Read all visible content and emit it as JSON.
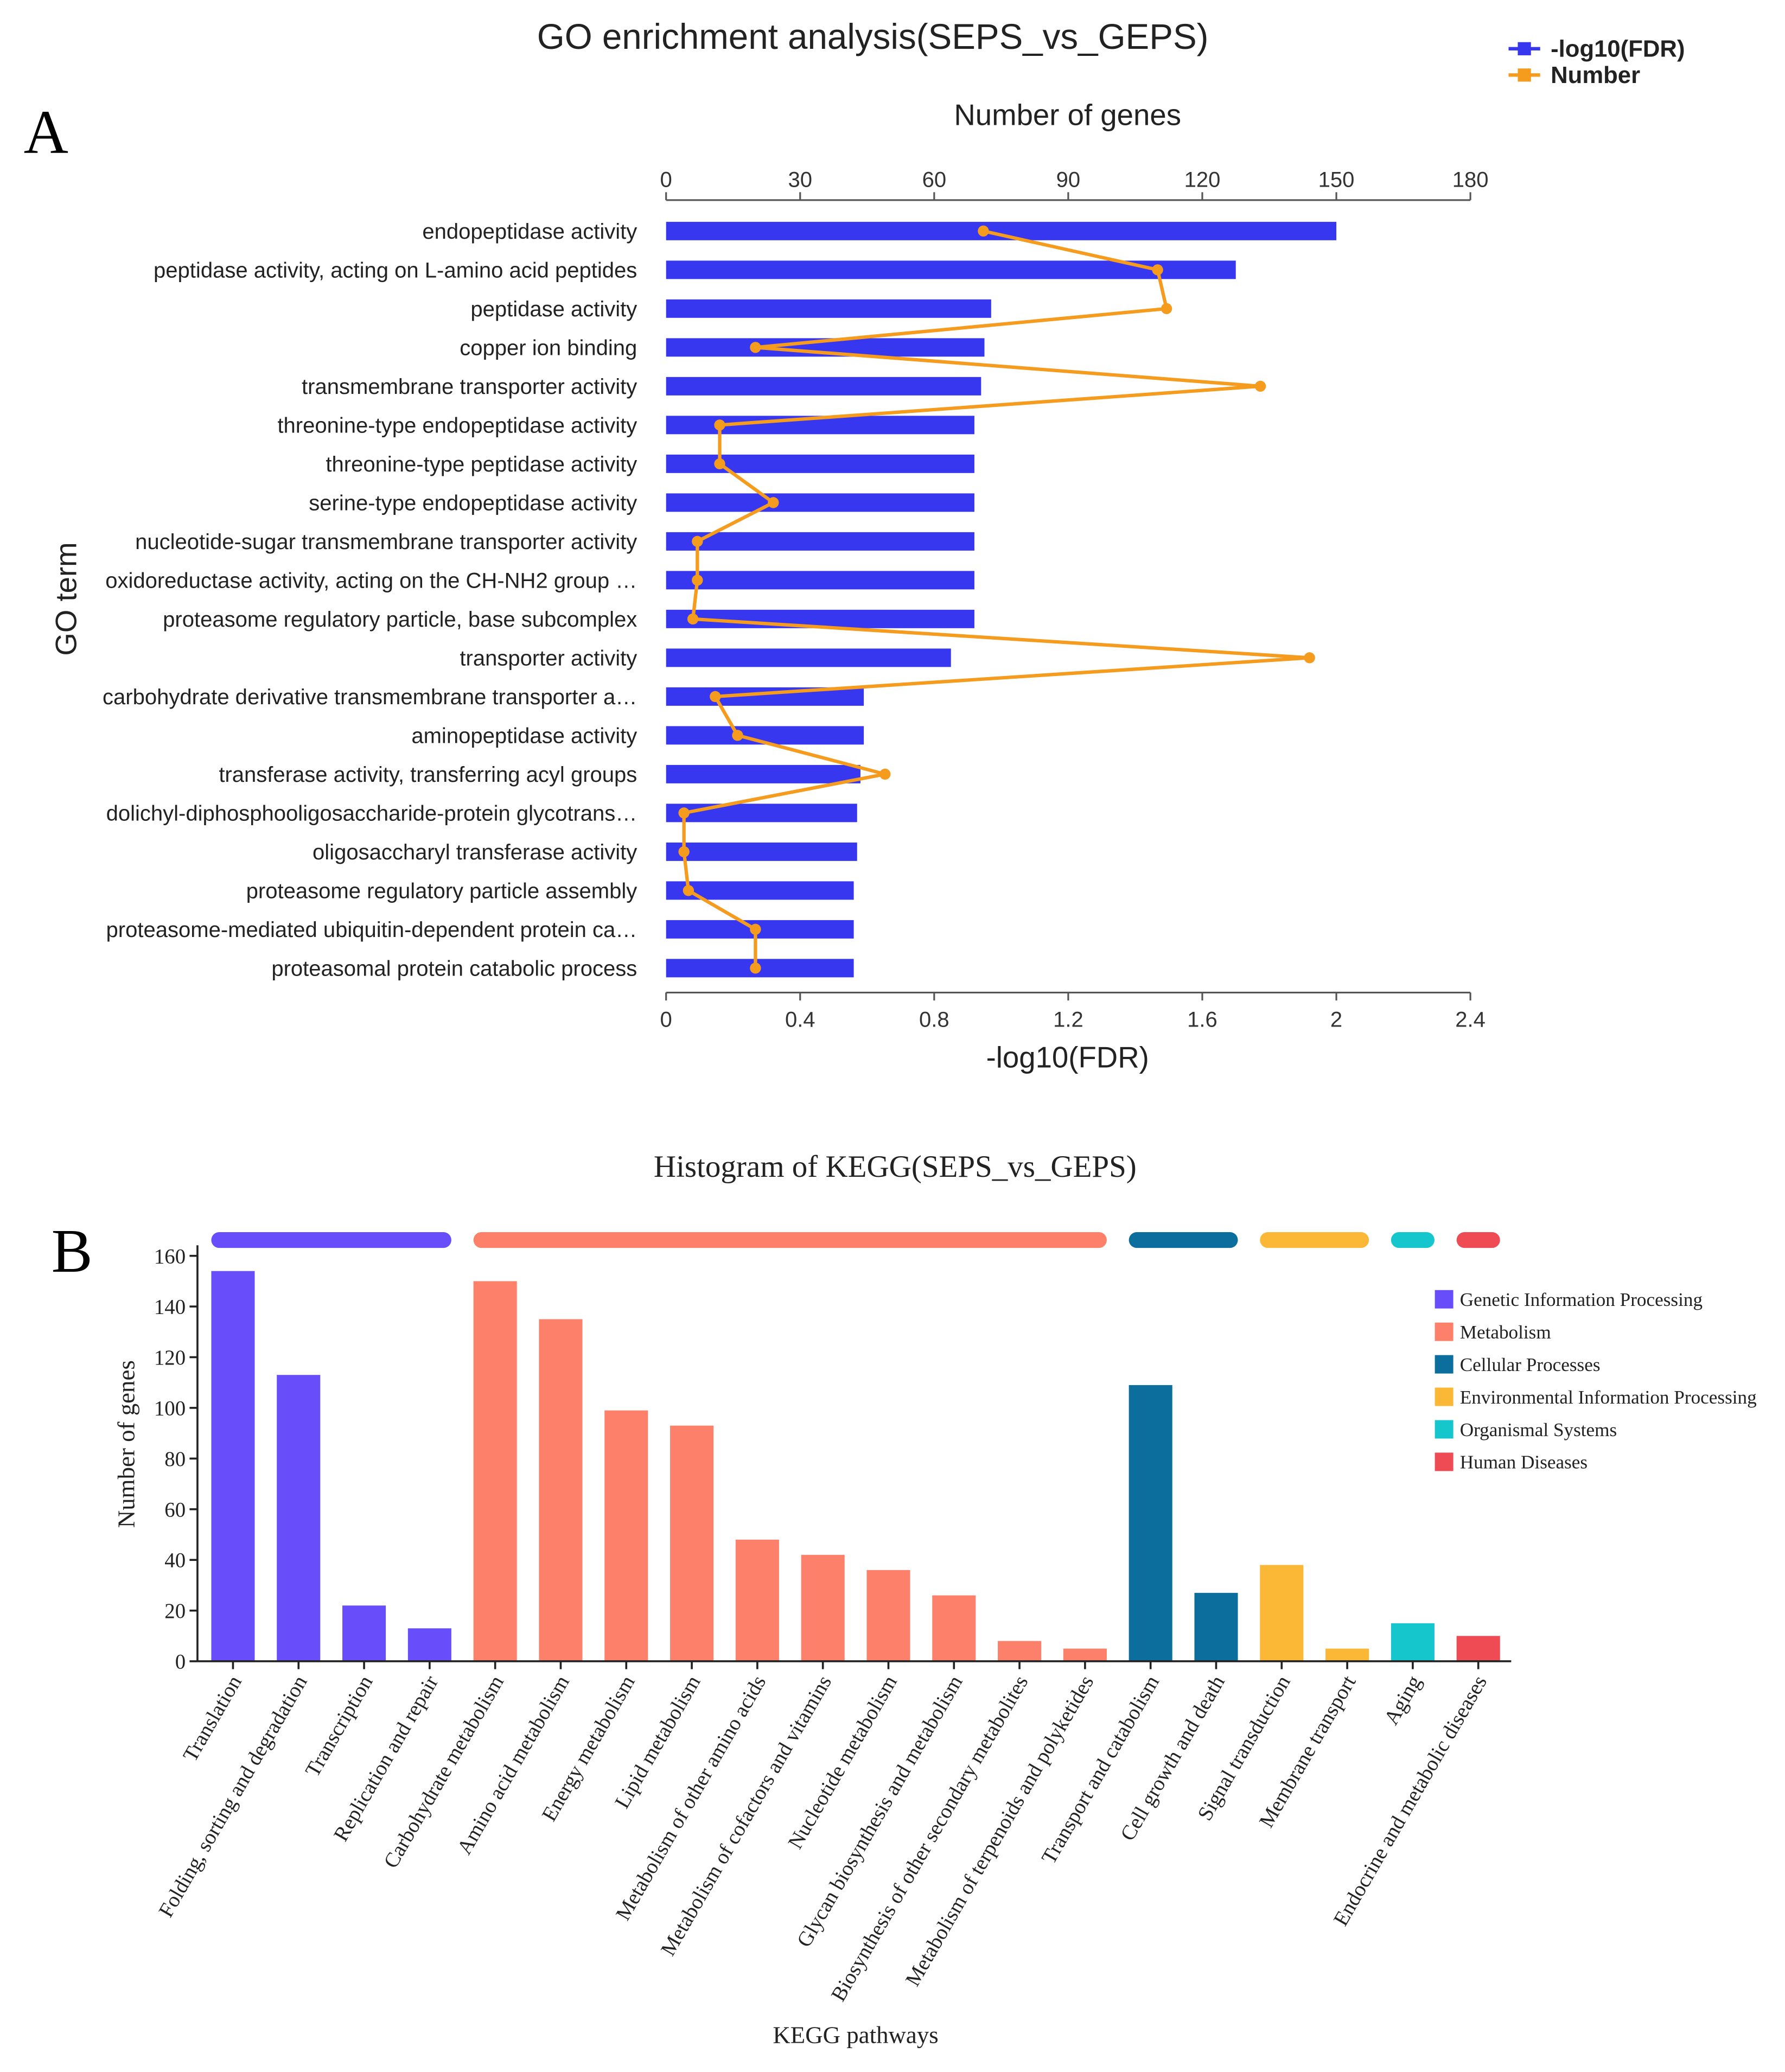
{
  "figure": {
    "panel_a": "A",
    "panel_b": "B"
  },
  "chart_data": [
    {
      "type": "bar",
      "title": "GO enrichment analysis(SEPS_vs_GEPS)",
      "xlabel": "-log10(FDR)",
      "x2label": "Number of genes",
      "ylabel": "GO term",
      "xlim": [
        0,
        2.4
      ],
      "xticks": [
        0,
        0.4,
        0.8,
        1.2,
        1.6,
        2,
        2.4
      ],
      "x2lim": [
        0,
        180
      ],
      "x2ticks": [
        0,
        30,
        60,
        90,
        120,
        150,
        180
      ],
      "grid": false,
      "categories": [
        "endopeptidase activity",
        "peptidase activity, acting on L-amino acid peptides",
        "peptidase activity",
        "copper ion binding",
        "transmembrane transporter activity",
        "threonine-type endopeptidase activity",
        "threonine-type peptidase activity",
        "serine-type endopeptidase activity",
        "nucleotide-sugar transmembrane transporter activity",
        "oxidoreductase activity, acting on the CH-NH2 group …",
        "proteasome regulatory particle, base subcomplex",
        "transporter activity",
        "carbohydrate derivative transmembrane transporter a…",
        "aminopeptidase activity",
        "transferase activity, transferring acyl groups",
        "dolichyl-diphosphooligosaccharide-protein glycotrans…",
        "oligosaccharyl transferase activity",
        "proteasome regulatory particle assembly",
        "proteasome-mediated ubiquitin-dependent protein ca…",
        "proteasomal protein catabolic process"
      ],
      "series": [
        {
          "name": "-log10(FDR)",
          "type": "bar",
          "color": "#3737f0",
          "values": [
            2.0,
            1.7,
            0.97,
            0.95,
            0.94,
            0.92,
            0.92,
            0.92,
            0.92,
            0.92,
            0.92,
            0.85,
            0.59,
            0.59,
            0.58,
            0.57,
            0.57,
            0.56,
            0.56,
            0.56
          ]
        },
        {
          "name": "Number",
          "type": "line",
          "color": "#f59b1e",
          "values": [
            71,
            110,
            112,
            20,
            133,
            12,
            12,
            24,
            7,
            7,
            6,
            144,
            11,
            16,
            49,
            4,
            4,
            5,
            20,
            20
          ]
        }
      ]
    },
    {
      "type": "bar",
      "title": "Histogram of KEGG(SEPS_vs_GEPS)",
      "xlabel": "KEGG pathways",
      "ylabel": "Number of genes",
      "ylim": [
        0,
        160
      ],
      "yticks": [
        0,
        20,
        40,
        60,
        80,
        100,
        120,
        140,
        160
      ],
      "grid": false,
      "groups": [
        {
          "name": "Genetic Information Processing",
          "color": "#684efb"
        },
        {
          "name": "Metabolism",
          "color": "#fc806a"
        },
        {
          "name": "Cellular Processes",
          "color": "#0b6e9c"
        },
        {
          "name": "Environmental Information Processing",
          "color": "#fbb836"
        },
        {
          "name": "Organismal Systems",
          "color": "#15c7cd"
        },
        {
          "name": "Human Diseases",
          "color": "#ef4b55"
        }
      ],
      "categories": [
        "Translation",
        "Folding, sorting and degradation",
        "Transcription",
        "Replication and repair",
        "Carbohydrate metabolism",
        "Amino acid metabolism",
        "Energy metabolism",
        "Lipid metabolism",
        "Metabolism of other amino acids",
        "Metabolism of cofactors and vitamins",
        "Nucleotide metabolism",
        "Glycan biosynthesis and metabolism",
        "Biosynthesis of other secondary metabolites",
        "Metabolism of terpenoids and polyketides",
        "Transport and catabolism",
        "Cell growth and death",
        "Signal transduction",
        "Membrane transport",
        "Aging",
        "Endocrine and metabolic diseases"
      ],
      "values": [
        154,
        113,
        22,
        13,
        150,
        135,
        99,
        93,
        48,
        42,
        36,
        26,
        8,
        5,
        109,
        27,
        38,
        5,
        15,
        10
      ],
      "group_index": [
        0,
        0,
        0,
        0,
        1,
        1,
        1,
        1,
        1,
        1,
        1,
        1,
        1,
        1,
        2,
        2,
        3,
        3,
        4,
        5
      ]
    }
  ]
}
